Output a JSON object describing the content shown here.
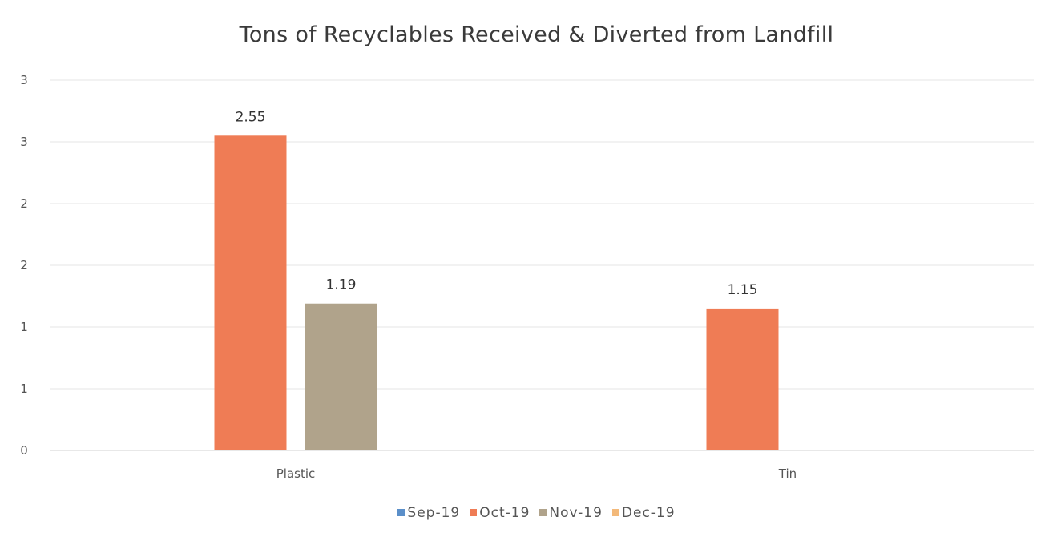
{
  "chart_data": {
    "type": "bar",
    "title": "Tons of Recyclables Received & Diverted from Landfill",
    "xlabel": "",
    "ylabel": "",
    "categories": [
      "Plastic",
      "Tin"
    ],
    "series": [
      {
        "name": "Sep-19",
        "color": "#5b8fc9",
        "values": [
          null,
          null
        ]
      },
      {
        "name": "Oct-19",
        "color": "#ef7c55",
        "values": [
          2.55,
          1.15
        ]
      },
      {
        "name": "Nov-19",
        "color": "#b0a38b",
        "values": [
          1.19,
          null
        ]
      },
      {
        "name": "Dec-19",
        "color": "#f3b97a",
        "values": [
          null,
          null
        ]
      }
    ],
    "ylim": [
      0,
      3
    ],
    "y_tick_labels": [
      "0",
      "1",
      "1",
      "2",
      "2",
      "3",
      "3"
    ],
    "data_labels": [
      {
        "series": "Oct-19",
        "category": "Plastic",
        "text": "2.55"
      },
      {
        "series": "Nov-19",
        "category": "Plastic",
        "text": "1.19"
      },
      {
        "series": "Oct-19",
        "category": "Tin",
        "text": "1.15"
      }
    ],
    "grid": true,
    "legend_position": "bottom"
  }
}
